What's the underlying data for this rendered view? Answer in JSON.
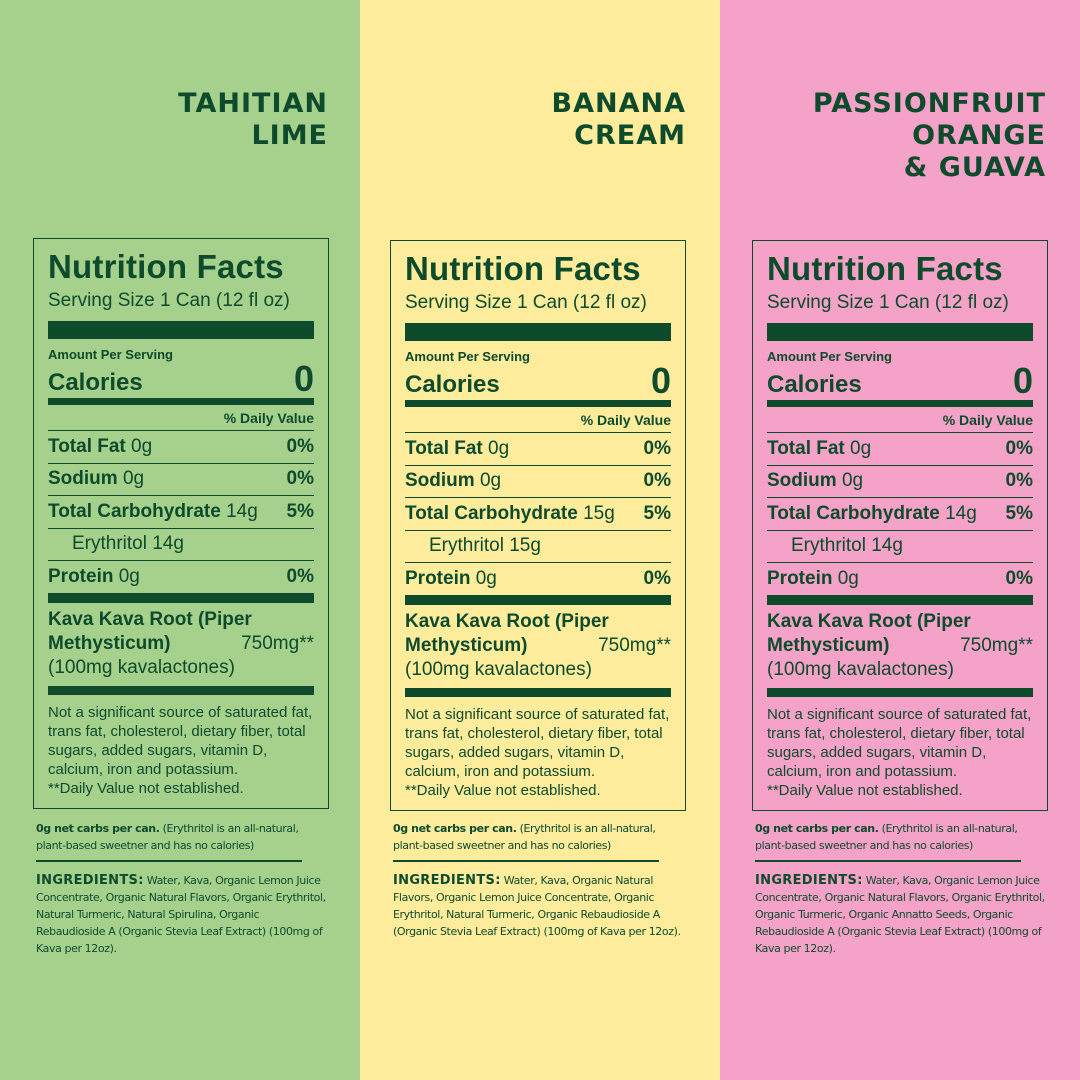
{
  "colors": {
    "lime_bg": "#a5d18d",
    "banana_bg": "#fcec9c",
    "passion_bg": "#f4a2c7",
    "text": "#0e4a2c"
  },
  "panels": [
    {
      "title_lines": [
        "TAHITIAN",
        "LIME"
      ],
      "label": {
        "heading": "Nutrition Facts",
        "serving": "Serving Size 1 Can (12 fl oz)",
        "amount_per_serving": "Amount Per Serving",
        "calories_label": "Calories",
        "calories_value": "0",
        "daily_value_header": "% Daily Value",
        "rows": [
          {
            "name": "Total Fat",
            "amount": "0g",
            "pct": "0%"
          },
          {
            "name": "Sodium",
            "amount": "0g",
            "pct": "0%"
          },
          {
            "name": "Total Carbohydrate",
            "amount": "14g",
            "pct": "5%"
          },
          {
            "name": "",
            "amount": "Erythritol 14g",
            "pct": "",
            "indent": true
          },
          {
            "name": "Protein",
            "amount": "0g",
            "pct": "0%"
          }
        ],
        "kava_line1": "Kava Kava Root (Piper",
        "kava_line2": "Methysticum)",
        "kava_amount": "750mg**",
        "kava_line3": "(100mg kavalactones)",
        "footnote": "Not a significant source of saturated fat, trans fat, cholesterol, dietary fiber, total sugars, added sugars, vitamin D, calcium, iron and potassium.",
        "footnote2": "**Daily Value not established."
      },
      "net_carbs_bold": "0g net carbs per can.",
      "net_carbs_rest": " (Erythritol is an all-natural, plant-based sweetner and has no calories)",
      "ingredients_label": "INGREDIENTS:",
      "ingredients": " Water, Kava, Organic Lemon Juice Concentrate, Organic Natural Flavors, Organic Erythritol, Natural Turmeric, Natural Spirulina, Organic Rebaudioside A (Organic Stevia Leaf Extract) (100mg of Kava per 12oz)."
    },
    {
      "title_lines": [
        "BANANA",
        "CREAM"
      ],
      "label": {
        "heading": "Nutrition Facts",
        "serving": "Serving Size 1 Can (12 fl oz)",
        "amount_per_serving": "Amount Per Serving",
        "calories_label": "Calories",
        "calories_value": "0",
        "daily_value_header": "% Daily Value",
        "rows": [
          {
            "name": "Total Fat",
            "amount": "0g",
            "pct": "0%"
          },
          {
            "name": "Sodium",
            "amount": "0g",
            "pct": "0%"
          },
          {
            "name": "Total Carbohydrate",
            "amount": "15g",
            "pct": "5%"
          },
          {
            "name": "",
            "amount": "Erythritol 15g",
            "pct": "",
            "indent": true
          },
          {
            "name": "Protein",
            "amount": "0g",
            "pct": "0%"
          }
        ],
        "kava_line1": "Kava Kava Root (Piper",
        "kava_line2": "Methysticum)",
        "kava_amount": "750mg**",
        "kava_line3": "(100mg kavalactones)",
        "footnote": "Not a significant source of saturated fat, trans fat, cholesterol, dietary fiber, total sugars, added sugars, vitamin D, calcium, iron and potassium.",
        "footnote2": "**Daily Value not established."
      },
      "net_carbs_bold": "0g net carbs per can.",
      "net_carbs_rest": " (Erythritol is an all-natural, plant-based sweetner and has no calories)",
      "ingredients_label": "INGREDIENTS:",
      "ingredients": " Water, Kava, Organic Natural Flavors, Organic Lemon Juice Concentrate, Organic Erythritol, Natural Turmeric, Organic Rebaudioside A (Organic Stevia Leaf Extract) (100mg of Kava per 12oz)."
    },
    {
      "title_lines": [
        "PASSIONFRUIT",
        "ORANGE",
        "& GUAVA"
      ],
      "label": {
        "heading": "Nutrition Facts",
        "serving": "Serving Size 1 Can (12 fl oz)",
        "amount_per_serving": "Amount Per Serving",
        "calories_label": "Calories",
        "calories_value": "0",
        "daily_value_header": "% Daily Value",
        "rows": [
          {
            "name": "Total Fat",
            "amount": "0g",
            "pct": "0%"
          },
          {
            "name": "Sodium",
            "amount": "0g",
            "pct": "0%"
          },
          {
            "name": "Total Carbohydrate",
            "amount": "14g",
            "pct": "5%"
          },
          {
            "name": "",
            "amount": "Erythritol 14g",
            "pct": "",
            "indent": true
          },
          {
            "name": "Protein",
            "amount": "0g",
            "pct": "0%"
          }
        ],
        "kava_line1": "Kava Kava Root (Piper",
        "kava_line2": "Methysticum)",
        "kava_amount": "750mg**",
        "kava_line3": "(100mg kavalactones)",
        "footnote": "Not a significant source of saturated fat, trans fat, cholesterol, dietary fiber, total sugars, added sugars, vitamin D, calcium, iron and potassium.",
        "footnote2": "**Daily Value not established."
      },
      "net_carbs_bold": "0g net carbs per can.",
      "net_carbs_rest": " (Erythritol is an all-natural, plant-based sweetner and has no calories)",
      "ingredients_label": "INGREDIENTS:",
      "ingredients": " Water, Kava, Organic Lemon Juice Concentrate, Organic Natural Flavors, Organic Erythritol, Organic Turmeric, Organic Annatto Seeds, Organic Rebaudioside A (Organic Stevia Leaf Extract) (100mg of Kava per 12oz)."
    }
  ]
}
